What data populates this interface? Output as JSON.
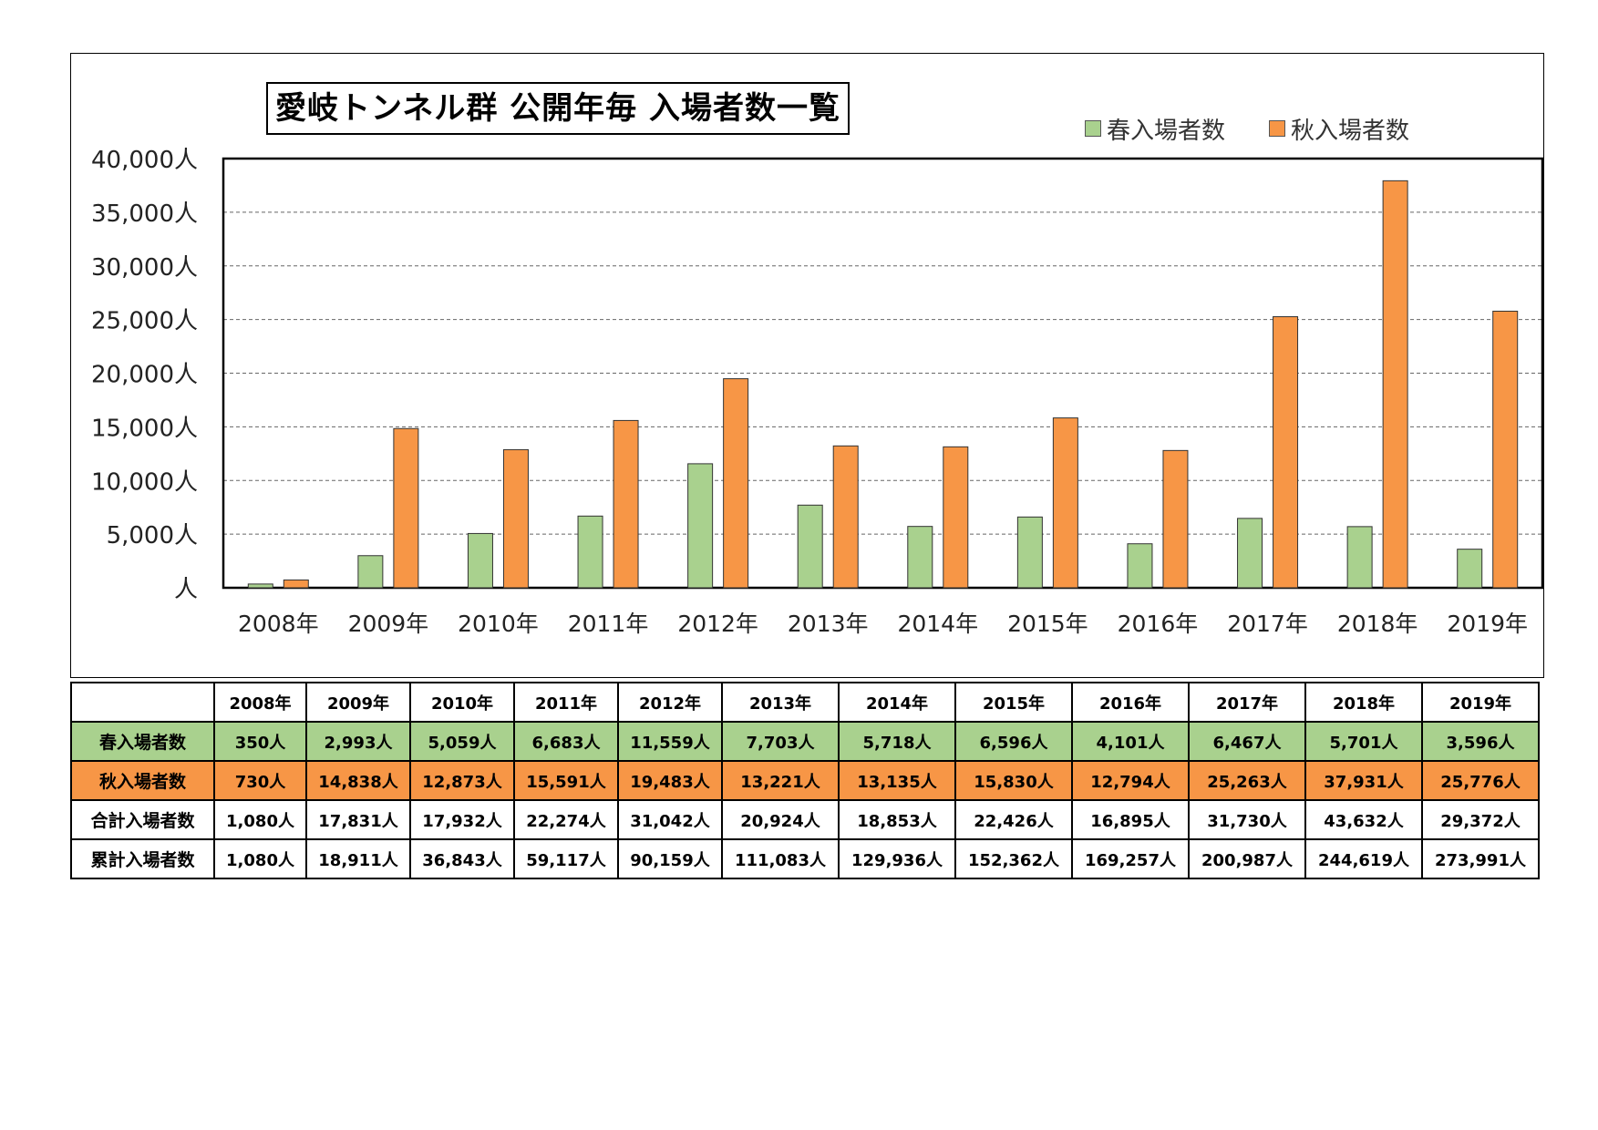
{
  "chart_data": {
    "type": "bar",
    "title": "愛岐トンネル群 公開年毎 入場者数一覧",
    "categories": [
      "2008年",
      "2009年",
      "2010年",
      "2011年",
      "2012年",
      "2013年",
      "2014年",
      "2015年",
      "2016年",
      "2017年",
      "2018年",
      "2019年"
    ],
    "series": [
      {
        "name": "春入場者数",
        "color": "#a9d18e",
        "values": [
          350,
          2993,
          5059,
          6683,
          11559,
          7703,
          5718,
          6596,
          4101,
          6467,
          5701,
          3596
        ]
      },
      {
        "name": "秋入場者数",
        "color": "#f79646",
        "values": [
          730,
          14838,
          12873,
          15591,
          19483,
          13221,
          13135,
          15830,
          12794,
          25263,
          37931,
          25776
        ]
      }
    ],
    "ylim": [
      0,
      40000
    ],
    "yticks": [
      0,
      5000,
      10000,
      15000,
      20000,
      25000,
      30000,
      35000,
      40000
    ],
    "ytick_labels": [
      "人",
      "5,000人",
      "10,000人",
      "15,000人",
      "20,000人",
      "25,000人",
      "30,000人",
      "35,000人",
      "40,000人"
    ],
    "grid": true,
    "legend_position": "top-right"
  },
  "table": {
    "header": [
      "",
      "2008年",
      "2009年",
      "2010年",
      "2011年",
      "2012年",
      "2013年",
      "2014年",
      "2015年",
      "2016年",
      "2017年",
      "2018年",
      "2019年"
    ],
    "rows": [
      {
        "label": "春入場者数",
        "values": [
          "350人",
          "2,993人",
          "5,059人",
          "6,683人",
          "11,559人",
          "7,703人",
          "5,718人",
          "6,596人",
          "4,101人",
          "6,467人",
          "5,701人",
          "3,596人"
        ]
      },
      {
        "label": "秋入場者数",
        "values": [
          "730人",
          "14,838人",
          "12,873人",
          "15,591人",
          "19,483人",
          "13,221人",
          "13,135人",
          "15,830人",
          "12,794人",
          "25,263人",
          "37,931人",
          "25,776人"
        ]
      },
      {
        "label": "合計入場者数",
        "values": [
          "1,080人",
          "17,831人",
          "17,932人",
          "22,274人",
          "31,042人",
          "20,924人",
          "18,853人",
          "22,426人",
          "16,895人",
          "31,730人",
          "43,632人",
          "29,372人"
        ]
      },
      {
        "label": "累計入場者数",
        "values": [
          "1,080人",
          "18,911人",
          "36,843人",
          "59,117人",
          "90,159人",
          "111,083人",
          "129,936人",
          "152,362人",
          "169,257人",
          "200,987人",
          "244,619人",
          "273,991人"
        ]
      }
    ]
  }
}
